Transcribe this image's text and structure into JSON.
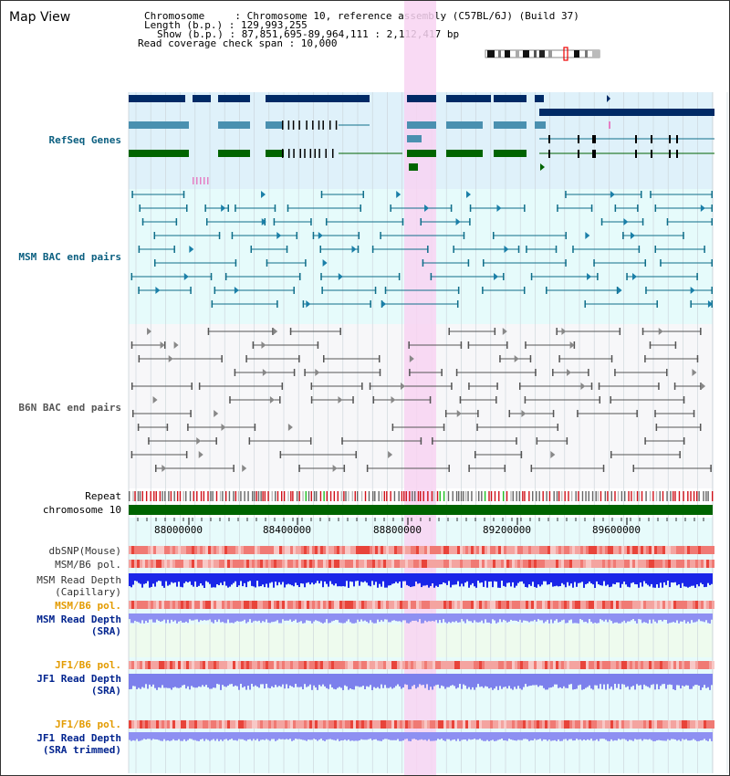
{
  "title": "Map View",
  "info": {
    "chromosome": "Chromosome     : Chromosome 10, reference assembly (C57BL/6J) (Build 37)",
    "length": "Length (b.p.) : 129,993,255",
    "show": "Show (b.p.) : 87,851,695-89,964,111 : 2,112,417 bp",
    "coverage": "Read coverage check span : 10,000"
  },
  "tracks": {
    "refseq": "RefSeq Genes",
    "msm_bac": "MSM BAC end pairs",
    "b6n_bac": "B6N BAC end pairs",
    "repeat": "Repeat",
    "chromosome": "chromosome 10",
    "dbsnp": "dbSNP(Mouse)",
    "msm_b6_pol_1": "MSM/B6 pol.",
    "msm_depth_cap": "MSM Read Depth\n(Capillary)",
    "msm_b6_pol_2": "MSM/B6 pol.",
    "msm_depth_sra": "MSM Read Depth\n(SRA)",
    "jf1_b6_pol_1": "JF1/B6 pol.",
    "jf1_depth_sra": "JF1 Read Depth\n(SRA)",
    "jf1_b6_pol_2": "JF1/B6 pol.",
    "jf1_depth_trim": "JF1 Read Depth\n(SRA trimmed)"
  },
  "axis_ticks": [
    "88000000",
    "88400000",
    "88800000",
    "89200000",
    "89600000"
  ],
  "colors": {
    "refseq_bg": "#dff1fa",
    "msm_bac_bg": "#e6fbfb",
    "b6n_bac_bg": "#f7f7f9",
    "highlight": "#f8d4f2",
    "chromosome": "#006400",
    "teal": "#0f6e8a",
    "navy": "#002a66",
    "green": "#006400",
    "steel": "#4a90b0",
    "label_blue": "#0b5f80",
    "label_navy": "#00238e",
    "label_orange": "#e39b00"
  }
}
